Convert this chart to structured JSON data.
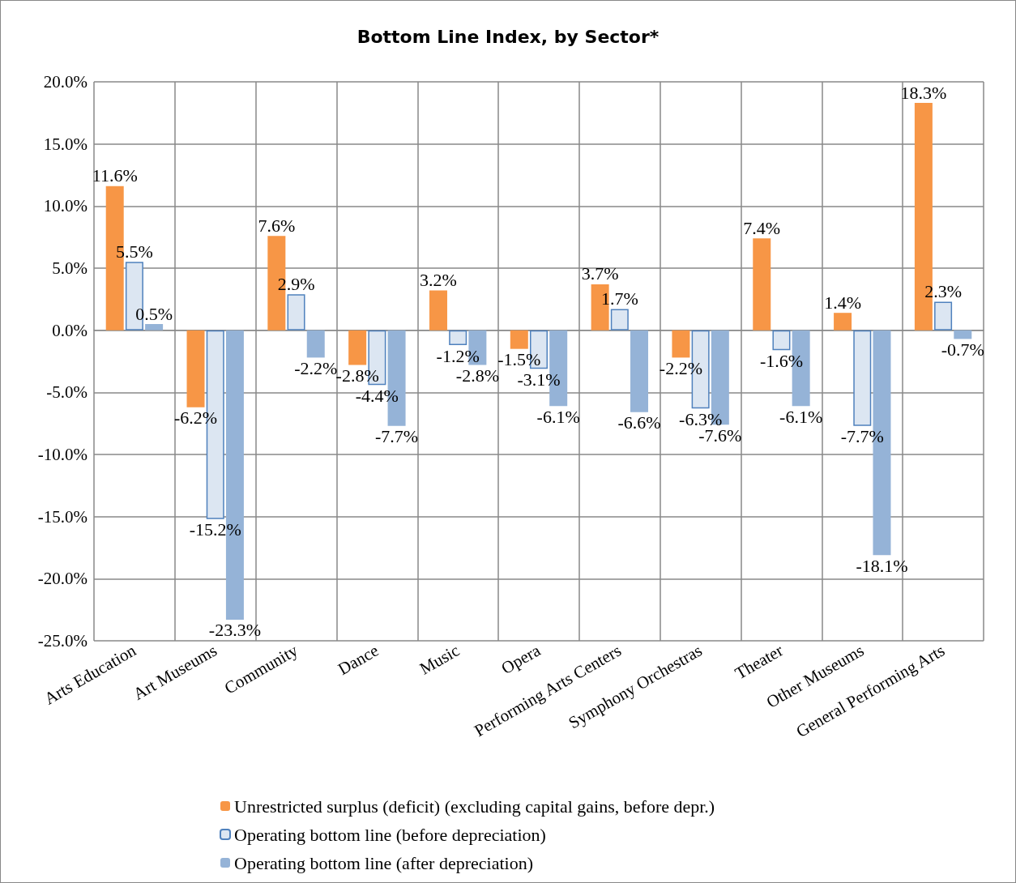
{
  "chart_data": {
    "type": "bar",
    "title": "Bottom Line Index, by Sector*",
    "categories": [
      "Arts Education",
      "Art Museums",
      "Community",
      "Dance",
      "Music",
      "Opera",
      "Performing Arts Centers",
      "Symphony Orchestras",
      "Theater",
      "Other Museums",
      "General Performing Arts"
    ],
    "series": [
      {
        "name": "Unrestricted surplus (deficit) (excluding capital gains, before depr.)",
        "color": "#f79646",
        "values": [
          11.6,
          -6.2,
          7.6,
          -2.8,
          3.2,
          -1.5,
          3.7,
          -2.2,
          7.4,
          1.4,
          18.3
        ],
        "value_labels": [
          "11.6%",
          "-6.2%",
          "7.6%",
          "-2.8%",
          "3.2%",
          "-1.5%",
          "3.7%",
          "-2.2%",
          "7.4%",
          "1.4%",
          "18.3%"
        ]
      },
      {
        "name": "Operating bottom line (before depreciation)",
        "color": "#dce6f2",
        "values": [
          5.5,
          -15.2,
          2.9,
          -4.4,
          -1.2,
          -3.1,
          1.7,
          -6.3,
          -1.6,
          -7.7,
          2.3
        ],
        "value_labels": [
          "5.5%",
          "-15.2%",
          "2.9%",
          "-4.4%",
          "-1.2%",
          "-3.1%",
          "1.7%",
          "-6.3%",
          "-1.6%",
          "-7.7%",
          "2.3%"
        ]
      },
      {
        "name": "Operating bottom line (after depreciation)",
        "color": "#95b3d7",
        "values": [
          0.5,
          -23.3,
          -2.2,
          -7.7,
          -2.8,
          -6.1,
          -6.6,
          -7.6,
          -6.1,
          -18.1,
          -0.7
        ],
        "value_labels": [
          "0.5%",
          "-23.3%",
          "-2.2%",
          "-7.7%",
          "-2.8%",
          "-6.1%",
          "-6.6%",
          "-7.6%",
          "-6.1%",
          "-18.1%",
          "-0.7%"
        ]
      }
    ],
    "ylim": [
      -25,
      20
    ],
    "yticks": [
      {
        "value": -25,
        "label": "-25.0%"
      },
      {
        "value": -20,
        "label": "-20.0%"
      },
      {
        "value": -15,
        "label": "-15.0%"
      },
      {
        "value": -10,
        "label": "-10.0%"
      },
      {
        "value": -5,
        "label": "-5.0%"
      },
      {
        "value": 0,
        "label": "0.0%"
      },
      {
        "value": 5,
        "label": "5.0%"
      },
      {
        "value": 10,
        "label": "10.0%"
      },
      {
        "value": 15,
        "label": "15.0%"
      },
      {
        "value": 20,
        "label": "20.0%"
      }
    ],
    "grid": true,
    "legend": "bottom"
  }
}
